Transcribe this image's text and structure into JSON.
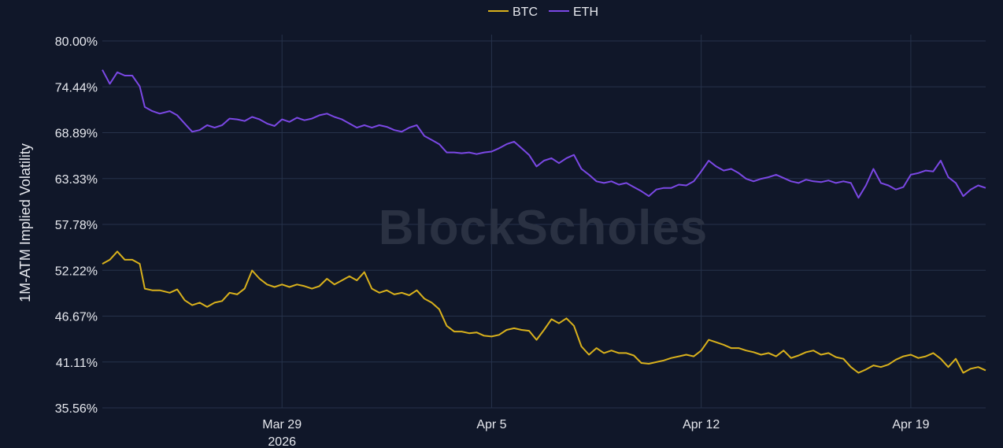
{
  "chart_data": {
    "type": "line",
    "title": "",
    "ylabel": "1M-ATM Implied Volatility",
    "xlabel": "",
    "watermark": "BlockScholes",
    "ylim": [
      35.56,
      80.0
    ],
    "y_ticks": [
      "80.00%",
      "74.44%",
      "68.89%",
      "63.33%",
      "57.78%",
      "52.22%",
      "46.67%",
      "41.11%",
      "35.56%"
    ],
    "y_tick_values": [
      80.0,
      74.44,
      68.89,
      63.33,
      57.78,
      52.22,
      46.67,
      41.11,
      35.56
    ],
    "x_range": [
      "2026-03-23",
      "2026-04-21"
    ],
    "x_ticks": [
      {
        "date": "2026-03-29",
        "label": "Mar 29",
        "sublabel": "2026"
      },
      {
        "date": "2026-04-05",
        "label": "Apr 5",
        "sublabel": ""
      },
      {
        "date": "2026-04-12",
        "label": "Apr 12",
        "sublabel": ""
      },
      {
        "date": "2026-04-19",
        "label": "Apr 19",
        "sublabel": ""
      }
    ],
    "grid": true,
    "legend_position": "top-center",
    "series": [
      {
        "name": "BTC",
        "color": "#d9b11c",
        "points": [
          [
            "2026-03-23 00:00",
            53.0
          ],
          [
            "2026-03-23 06:00",
            53.5
          ],
          [
            "2026-03-23 12:00",
            54.5
          ],
          [
            "2026-03-23 18:00",
            53.5
          ],
          [
            "2026-03-24 00:00",
            53.5
          ],
          [
            "2026-03-24 06:00",
            53.0
          ],
          [
            "2026-03-24 10:00",
            50.0
          ],
          [
            "2026-03-24 16:00",
            49.8
          ],
          [
            "2026-03-24 22:00",
            49.8
          ],
          [
            "2026-03-25 06:00",
            49.5
          ],
          [
            "2026-03-25 12:00",
            49.9
          ],
          [
            "2026-03-25 18:00",
            48.6
          ],
          [
            "2026-03-26 00:00",
            48.0
          ],
          [
            "2026-03-26 06:00",
            48.3
          ],
          [
            "2026-03-26 12:00",
            47.8
          ],
          [
            "2026-03-26 18:00",
            48.3
          ],
          [
            "2026-03-27 00:00",
            48.5
          ],
          [
            "2026-03-27 06:00",
            49.5
          ],
          [
            "2026-03-27 12:00",
            49.3
          ],
          [
            "2026-03-27 18:00",
            50.0
          ],
          [
            "2026-03-28 00:00",
            52.2
          ],
          [
            "2026-03-28 06:00",
            51.2
          ],
          [
            "2026-03-28 12:00",
            50.5
          ],
          [
            "2026-03-28 18:00",
            50.2
          ],
          [
            "2026-03-29 00:00",
            50.5
          ],
          [
            "2026-03-29 06:00",
            50.2
          ],
          [
            "2026-03-29 12:00",
            50.5
          ],
          [
            "2026-03-29 18:00",
            50.3
          ],
          [
            "2026-03-30 00:00",
            50.0
          ],
          [
            "2026-03-30 06:00",
            50.3
          ],
          [
            "2026-03-30 12:00",
            51.2
          ],
          [
            "2026-03-30 18:00",
            50.5
          ],
          [
            "2026-03-31 00:00",
            51.0
          ],
          [
            "2026-03-31 06:00",
            51.5
          ],
          [
            "2026-03-31 12:00",
            51.0
          ],
          [
            "2026-03-31 18:00",
            52.0
          ],
          [
            "2026-04-01 00:00",
            50.0
          ],
          [
            "2026-04-01 06:00",
            49.5
          ],
          [
            "2026-04-01 12:00",
            49.8
          ],
          [
            "2026-04-01 18:00",
            49.3
          ],
          [
            "2026-04-02 00:00",
            49.5
          ],
          [
            "2026-04-02 06:00",
            49.2
          ],
          [
            "2026-04-02 12:00",
            49.8
          ],
          [
            "2026-04-02 18:00",
            48.8
          ],
          [
            "2026-04-03 00:00",
            48.3
          ],
          [
            "2026-04-03 06:00",
            47.5
          ],
          [
            "2026-04-03 12:00",
            45.5
          ],
          [
            "2026-04-03 18:00",
            44.8
          ],
          [
            "2026-04-04 00:00",
            44.8
          ],
          [
            "2026-04-04 06:00",
            44.6
          ],
          [
            "2026-04-04 12:00",
            44.7
          ],
          [
            "2026-04-04 18:00",
            44.3
          ],
          [
            "2026-04-05 00:00",
            44.2
          ],
          [
            "2026-04-05 06:00",
            44.4
          ],
          [
            "2026-04-05 12:00",
            45.0
          ],
          [
            "2026-04-05 18:00",
            45.2
          ],
          [
            "2026-04-06 00:00",
            45.0
          ],
          [
            "2026-04-06 06:00",
            44.9
          ],
          [
            "2026-04-06 12:00",
            43.8
          ],
          [
            "2026-04-06 18:00",
            45.0
          ],
          [
            "2026-04-07 00:00",
            46.3
          ],
          [
            "2026-04-07 06:00",
            45.8
          ],
          [
            "2026-04-07 12:00",
            46.4
          ],
          [
            "2026-04-07 18:00",
            45.5
          ],
          [
            "2026-04-08 00:00",
            43.0
          ],
          [
            "2026-04-08 06:00",
            42.0
          ],
          [
            "2026-04-08 12:00",
            42.8
          ],
          [
            "2026-04-08 18:00",
            42.2
          ],
          [
            "2026-04-09 00:00",
            42.5
          ],
          [
            "2026-04-09 06:00",
            42.2
          ],
          [
            "2026-04-09 12:00",
            42.2
          ],
          [
            "2026-04-09 18:00",
            41.9
          ],
          [
            "2026-04-10 00:00",
            41.0
          ],
          [
            "2026-04-10 06:00",
            40.9
          ],
          [
            "2026-04-10 12:00",
            41.1
          ],
          [
            "2026-04-10 18:00",
            41.3
          ],
          [
            "2026-04-11 00:00",
            41.6
          ],
          [
            "2026-04-11 06:00",
            41.8
          ],
          [
            "2026-04-11 12:00",
            42.0
          ],
          [
            "2026-04-11 18:00",
            41.8
          ],
          [
            "2026-04-12 00:00",
            42.5
          ],
          [
            "2026-04-12 06:00",
            43.8
          ],
          [
            "2026-04-12 12:00",
            43.5
          ],
          [
            "2026-04-12 18:00",
            43.2
          ],
          [
            "2026-04-13 00:00",
            42.8
          ],
          [
            "2026-04-13 06:00",
            42.8
          ],
          [
            "2026-04-13 12:00",
            42.5
          ],
          [
            "2026-04-13 18:00",
            42.3
          ],
          [
            "2026-04-14 00:00",
            42.0
          ],
          [
            "2026-04-14 06:00",
            42.2
          ],
          [
            "2026-04-14 12:00",
            41.8
          ],
          [
            "2026-04-14 18:00",
            42.5
          ],
          [
            "2026-04-15 00:00",
            41.6
          ],
          [
            "2026-04-15 06:00",
            41.9
          ],
          [
            "2026-04-15 12:00",
            42.3
          ],
          [
            "2026-04-15 18:00",
            42.5
          ],
          [
            "2026-04-16 00:00",
            42.0
          ],
          [
            "2026-04-16 06:00",
            42.2
          ],
          [
            "2026-04-16 12:00",
            41.7
          ],
          [
            "2026-04-16 18:00",
            41.5
          ],
          [
            "2026-04-17 00:00",
            40.5
          ],
          [
            "2026-04-17 06:00",
            39.8
          ],
          [
            "2026-04-17 12:00",
            40.2
          ],
          [
            "2026-04-17 18:00",
            40.7
          ],
          [
            "2026-04-18 00:00",
            40.5
          ],
          [
            "2026-04-18 06:00",
            40.8
          ],
          [
            "2026-04-18 12:00",
            41.4
          ],
          [
            "2026-04-18 18:00",
            41.8
          ],
          [
            "2026-04-19 00:00",
            42.0
          ],
          [
            "2026-04-19 06:00",
            41.6
          ],
          [
            "2026-04-19 12:00",
            41.8
          ],
          [
            "2026-04-19 18:00",
            42.2
          ],
          [
            "2026-04-20 00:00",
            41.5
          ],
          [
            "2026-04-20 06:00",
            40.5
          ],
          [
            "2026-04-20 12:00",
            41.5
          ],
          [
            "2026-04-20 18:00",
            39.8
          ],
          [
            "2026-04-21 00:00",
            40.3
          ],
          [
            "2026-04-21 06:00",
            40.5
          ],
          [
            "2026-04-21 12:00",
            40.1
          ]
        ]
      },
      {
        "name": "ETH",
        "color": "#7b48e5",
        "points": [
          [
            "2026-03-23 00:00",
            76.5
          ],
          [
            "2026-03-23 06:00",
            74.8
          ],
          [
            "2026-03-23 12:00",
            76.2
          ],
          [
            "2026-03-23 18:00",
            75.8
          ],
          [
            "2026-03-24 00:00",
            75.8
          ],
          [
            "2026-03-24 06:00",
            74.5
          ],
          [
            "2026-03-24 10:00",
            72.0
          ],
          [
            "2026-03-24 16:00",
            71.5
          ],
          [
            "2026-03-24 22:00",
            71.2
          ],
          [
            "2026-03-25 06:00",
            71.5
          ],
          [
            "2026-03-25 12:00",
            71.0
          ],
          [
            "2026-03-25 18:00",
            70.0
          ],
          [
            "2026-03-26 00:00",
            69.0
          ],
          [
            "2026-03-26 06:00",
            69.2
          ],
          [
            "2026-03-26 12:00",
            69.8
          ],
          [
            "2026-03-26 18:00",
            69.5
          ],
          [
            "2026-03-27 00:00",
            69.8
          ],
          [
            "2026-03-27 06:00",
            70.6
          ],
          [
            "2026-03-27 12:00",
            70.5
          ],
          [
            "2026-03-27 18:00",
            70.3
          ],
          [
            "2026-03-28 00:00",
            70.8
          ],
          [
            "2026-03-28 06:00",
            70.5
          ],
          [
            "2026-03-28 12:00",
            70.0
          ],
          [
            "2026-03-28 18:00",
            69.7
          ],
          [
            "2026-03-29 00:00",
            70.5
          ],
          [
            "2026-03-29 06:00",
            70.2
          ],
          [
            "2026-03-29 12:00",
            70.7
          ],
          [
            "2026-03-29 18:00",
            70.4
          ],
          [
            "2026-03-30 00:00",
            70.6
          ],
          [
            "2026-03-30 06:00",
            71.0
          ],
          [
            "2026-03-30 12:00",
            71.2
          ],
          [
            "2026-03-30 18:00",
            70.8
          ],
          [
            "2026-03-31 00:00",
            70.5
          ],
          [
            "2026-03-31 06:00",
            70.0
          ],
          [
            "2026-03-31 12:00",
            69.5
          ],
          [
            "2026-03-31 18:00",
            69.8
          ],
          [
            "2026-04-01 00:00",
            69.5
          ],
          [
            "2026-04-01 06:00",
            69.8
          ],
          [
            "2026-04-01 12:00",
            69.6
          ],
          [
            "2026-04-01 18:00",
            69.2
          ],
          [
            "2026-04-02 00:00",
            69.0
          ],
          [
            "2026-04-02 06:00",
            69.5
          ],
          [
            "2026-04-02 12:00",
            69.8
          ],
          [
            "2026-04-02 18:00",
            68.5
          ],
          [
            "2026-04-03 00:00",
            68.0
          ],
          [
            "2026-04-03 06:00",
            67.5
          ],
          [
            "2026-04-03 12:00",
            66.5
          ],
          [
            "2026-04-03 18:00",
            66.5
          ],
          [
            "2026-04-04 00:00",
            66.4
          ],
          [
            "2026-04-04 06:00",
            66.5
          ],
          [
            "2026-04-04 12:00",
            66.3
          ],
          [
            "2026-04-04 18:00",
            66.5
          ],
          [
            "2026-04-05 00:00",
            66.6
          ],
          [
            "2026-04-05 06:00",
            67.0
          ],
          [
            "2026-04-05 12:00",
            67.5
          ],
          [
            "2026-04-05 18:00",
            67.8
          ],
          [
            "2026-04-06 00:00",
            67.0
          ],
          [
            "2026-04-06 06:00",
            66.2
          ],
          [
            "2026-04-06 12:00",
            64.8
          ],
          [
            "2026-04-06 18:00",
            65.5
          ],
          [
            "2026-04-07 00:00",
            65.8
          ],
          [
            "2026-04-07 06:00",
            65.2
          ],
          [
            "2026-04-07 12:00",
            65.8
          ],
          [
            "2026-04-07 18:00",
            66.2
          ],
          [
            "2026-04-08 00:00",
            64.5
          ],
          [
            "2026-04-08 06:00",
            63.8
          ],
          [
            "2026-04-08 12:00",
            63.0
          ],
          [
            "2026-04-08 18:00",
            62.8
          ],
          [
            "2026-04-09 00:00",
            63.0
          ],
          [
            "2026-04-09 06:00",
            62.6
          ],
          [
            "2026-04-09 12:00",
            62.8
          ],
          [
            "2026-04-09 18:00",
            62.3
          ],
          [
            "2026-04-10 00:00",
            61.8
          ],
          [
            "2026-04-10 06:00",
            61.2
          ],
          [
            "2026-04-10 12:00",
            62.0
          ],
          [
            "2026-04-10 18:00",
            62.2
          ],
          [
            "2026-04-11 00:00",
            62.2
          ],
          [
            "2026-04-11 06:00",
            62.6
          ],
          [
            "2026-04-11 12:00",
            62.5
          ],
          [
            "2026-04-11 18:00",
            63.0
          ],
          [
            "2026-04-12 00:00",
            64.2
          ],
          [
            "2026-04-12 06:00",
            65.5
          ],
          [
            "2026-04-12 12:00",
            64.8
          ],
          [
            "2026-04-12 18:00",
            64.3
          ],
          [
            "2026-04-13 00:00",
            64.5
          ],
          [
            "2026-04-13 06:00",
            64.0
          ],
          [
            "2026-04-13 12:00",
            63.3
          ],
          [
            "2026-04-13 18:00",
            63.0
          ],
          [
            "2026-04-14 00:00",
            63.3
          ],
          [
            "2026-04-14 06:00",
            63.5
          ],
          [
            "2026-04-14 12:00",
            63.8
          ],
          [
            "2026-04-14 18:00",
            63.4
          ],
          [
            "2026-04-15 00:00",
            63.0
          ],
          [
            "2026-04-15 06:00",
            62.8
          ],
          [
            "2026-04-15 12:00",
            63.2
          ],
          [
            "2026-04-15 18:00",
            63.0
          ],
          [
            "2026-04-16 00:00",
            62.9
          ],
          [
            "2026-04-16 06:00",
            63.1
          ],
          [
            "2026-04-16 12:00",
            62.8
          ],
          [
            "2026-04-16 18:00",
            63.0
          ],
          [
            "2026-04-17 00:00",
            62.8
          ],
          [
            "2026-04-17 06:00",
            61.0
          ],
          [
            "2026-04-17 12:00",
            62.5
          ],
          [
            "2026-04-17 18:00",
            64.5
          ],
          [
            "2026-04-18 00:00",
            62.8
          ],
          [
            "2026-04-18 06:00",
            62.5
          ],
          [
            "2026-04-18 12:00",
            62.0
          ],
          [
            "2026-04-18 18:00",
            62.3
          ],
          [
            "2026-04-19 00:00",
            63.8
          ],
          [
            "2026-04-19 06:00",
            64.0
          ],
          [
            "2026-04-19 12:00",
            64.3
          ],
          [
            "2026-04-19 18:00",
            64.2
          ],
          [
            "2026-04-20 00:00",
            65.5
          ],
          [
            "2026-04-20 06:00",
            63.5
          ],
          [
            "2026-04-20 12:00",
            62.8
          ],
          [
            "2026-04-20 18:00",
            61.2
          ],
          [
            "2026-04-21 00:00",
            62.0
          ],
          [
            "2026-04-21 06:00",
            62.5
          ],
          [
            "2026-04-21 12:00",
            62.2
          ]
        ]
      }
    ]
  }
}
